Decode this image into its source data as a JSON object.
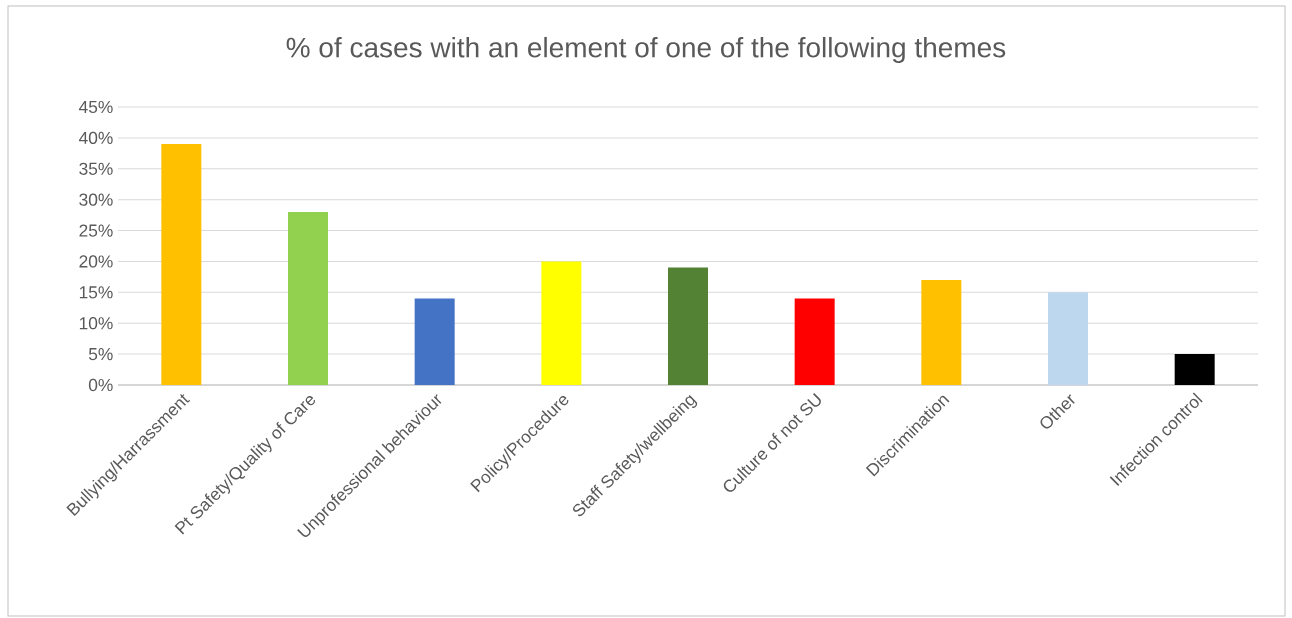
{
  "chart_data": {
    "type": "bar",
    "title": "% of cases with an element of one of the following themes",
    "categories": [
      "Bullying/Harrassment",
      "Pt Safety/Quality of Care",
      "Unprofessional behaviour",
      "Policy/Procedure",
      "Staff Safety/wellbeing",
      "Culture of not SU",
      "Discrimination",
      "Other",
      "Infection control"
    ],
    "values": [
      39,
      28,
      14,
      20,
      19,
      14,
      17,
      15,
      5
    ],
    "colors": [
      "#ffc000",
      "#92d050",
      "#4472c4",
      "#ffff00",
      "#548235",
      "#ff0000",
      "#ffc000",
      "#bdd7ee",
      "#000000"
    ],
    "ylim": [
      0,
      45
    ],
    "yticks": [
      {
        "value": 0,
        "label": "0%"
      },
      {
        "value": 5,
        "label": "5%"
      },
      {
        "value": 10,
        "label": "10%"
      },
      {
        "value": 15,
        "label": "15%"
      },
      {
        "value": 20,
        "label": "20%"
      },
      {
        "value": 25,
        "label": "25%"
      },
      {
        "value": 30,
        "label": "30%"
      },
      {
        "value": 35,
        "label": "35%"
      },
      {
        "value": 40,
        "label": "40%"
      },
      {
        "value": 45,
        "label": "45%"
      }
    ],
    "grid": "y"
  }
}
